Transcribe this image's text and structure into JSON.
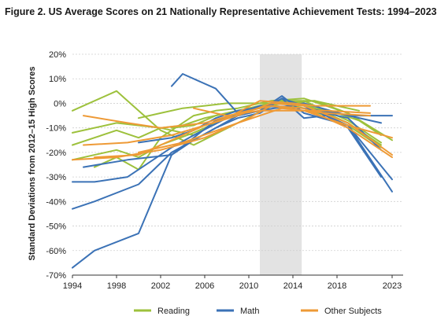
{
  "figure": {
    "title": "Figure 2. US Average Scores on 21 Nationally Representative Achievement Tests: 1994–2023"
  },
  "chart_data": {
    "type": "line",
    "title": "Figure 2. US Average Scores on 21 Nationally Representative Achievement Tests: 1994–2023",
    "xlabel": "",
    "ylabel": "Standard Deviations from 2012–15 High Scores",
    "xlim": [
      1994,
      2024
    ],
    "ylim": [
      -70,
      20
    ],
    "x_ticks": [
      1994,
      1998,
      2002,
      2006,
      2010,
      2014,
      2018,
      2023
    ],
    "x_tick_labels": [
      "1994",
      "1998",
      "2002",
      "2006",
      "2010",
      "2014",
      "2018",
      "2023"
    ],
    "y_ticks": [
      20,
      10,
      0,
      -10,
      -20,
      -30,
      -40,
      -50,
      -60,
      -70
    ],
    "y_tick_labels": [
      "20%",
      "10%",
      "0%",
      "-10%",
      "-20%",
      "-30%",
      "-40%",
      "-50%",
      "-60%",
      "-70%"
    ],
    "shaded_region": {
      "x_start": 2011,
      "x_end": 2014.8
    },
    "grid": "horizontal",
    "legend_position": "bottom",
    "legend": [
      {
        "label": "Reading",
        "color": "#9dc13c"
      },
      {
        "label": "Math",
        "color": "#3b72b6"
      },
      {
        "label": "Other Subjects",
        "color": "#ee9a36"
      }
    ],
    "series": [
      {
        "group": "Reading",
        "color": "#9dc13c",
        "x": [
          1994,
          1998,
          2002,
          2005,
          2009,
          2013,
          2015,
          2019,
          2022
        ],
        "y": [
          -3,
          5,
          -11,
          -17,
          -8,
          1,
          0,
          -8,
          -17
        ]
      },
      {
        "group": "Reading",
        "color": "#9dc13c",
        "x": [
          1994,
          1998,
          2002,
          2005,
          2007,
          2009,
          2011,
          2013,
          2015,
          2017,
          2019,
          2022
        ],
        "y": [
          -12,
          -8,
          -10,
          -13,
          -8,
          -4,
          -2,
          0,
          1,
          -3,
          -7,
          -16
        ]
      },
      {
        "group": "Reading",
        "color": "#9dc13c",
        "x": [
          1994,
          1998,
          2000,
          2002,
          2005,
          2007,
          2009,
          2011,
          2013,
          2015,
          2017,
          2019,
          2022
        ],
        "y": [
          -23,
          -19,
          -22,
          -17,
          -12,
          -8,
          -4,
          -1,
          0,
          -2,
          -5,
          -9,
          -18
        ]
      },
      {
        "group": "Reading",
        "color": "#9dc13c",
        "x": [
          1996,
          1998,
          2000,
          2002,
          2005,
          2007,
          2009,
          2012,
          2015,
          2019,
          2022
        ],
        "y": [
          -26,
          -22,
          -27,
          -14,
          -5,
          -3,
          -2,
          1,
          2,
          -4,
          -13
        ]
      },
      {
        "group": "Reading",
        "color": "#9dc13c",
        "x": [
          2000,
          2002,
          2004,
          2006,
          2008,
          2010,
          2012,
          2014,
          2016,
          2018,
          2020
        ],
        "y": [
          -6,
          -4,
          -2,
          -1,
          0,
          0,
          0,
          1,
          1,
          -1,
          -3
        ]
      },
      {
        "group": "Reading",
        "color": "#9dc13c",
        "x": [
          1994,
          1996,
          1998,
          2000,
          2002,
          2004,
          2006,
          2008,
          2010,
          2012,
          2014,
          2016,
          2018,
          2020
        ],
        "y": [
          -17,
          -14,
          -11,
          -14,
          -10,
          -9,
          -6,
          -4,
          -2,
          0,
          0,
          -2,
          -4,
          -7
        ]
      },
      {
        "group": "Reading",
        "color": "#9dc13c",
        "x": [
          2003,
          2005,
          2007,
          2009,
          2011,
          2013,
          2016,
          2019,
          2023
        ],
        "y": [
          -10,
          -9,
          -5,
          -3,
          -1,
          0,
          1,
          -4,
          -15
        ]
      },
      {
        "group": "Math",
        "color": "#3b72b6",
        "x": [
          1994,
          1996,
          2000,
          2003,
          2005,
          2007,
          2009,
          2011,
          2013,
          2015,
          2017,
          2019,
          2022
        ],
        "y": [
          -67,
          -60,
          -53,
          -21,
          -15,
          -10,
          -6,
          -4,
          2,
          -6,
          -5,
          -10,
          -30
        ]
      },
      {
        "group": "Math",
        "color": "#3b72b6",
        "x": [
          1994,
          1996,
          2000,
          2003,
          2005,
          2007,
          2009,
          2011,
          2013,
          2015,
          2019,
          2023
        ],
        "y": [
          -43,
          -40,
          -33,
          -20,
          -15,
          -10,
          -5,
          -3,
          3,
          -4,
          -9,
          -36
        ]
      },
      {
        "group": "Math",
        "color": "#3b72b6",
        "x": [
          1994,
          1996,
          1999,
          2003,
          2005,
          2008,
          2011,
          2013,
          2015,
          2019,
          2023
        ],
        "y": [
          -32,
          -32,
          -30,
          -18,
          -13,
          -6,
          -3,
          2,
          -1,
          -9,
          -31
        ]
      },
      {
        "group": "Math",
        "color": "#3b72b6",
        "x": [
          1995,
          1999,
          2003,
          2007,
          2011,
          2015,
          2019,
          2023
        ],
        "y": [
          -26,
          -23,
          -21,
          -7,
          -3,
          0,
          -5,
          -5
        ]
      },
      {
        "group": "Math",
        "color": "#3b72b6",
        "x": [
          2003,
          2004,
          2007,
          2009,
          2011,
          2015,
          2019,
          2022
        ],
        "y": [
          7,
          12,
          6,
          -4,
          -1,
          -2,
          -6,
          -19
        ]
      },
      {
        "group": "Math",
        "color": "#3b72b6",
        "x": [
          2000,
          2003,
          2005,
          2007,
          2009,
          2012,
          2015,
          2018,
          2022
        ],
        "y": [
          -16,
          -14,
          -11,
          -6,
          -3,
          -1,
          -2,
          -4,
          -8
        ]
      },
      {
        "group": "Other Subjects",
        "color": "#ee9a36",
        "x": [
          1994,
          1998,
          2002,
          2006,
          2010,
          2012,
          2015,
          2019,
          2023
        ],
        "y": [
          -23,
          -22,
          -19,
          -14,
          -6,
          -1,
          -2,
          -10,
          -22
        ]
      },
      {
        "group": "Other Subjects",
        "color": "#ee9a36",
        "x": [
          1995,
          1999,
          2003,
          2006,
          2009,
          2012,
          2015,
          2019,
          2023
        ],
        "y": [
          -17,
          -16,
          -13,
          -9,
          -5,
          0,
          -1,
          -8,
          -21
        ]
      },
      {
        "group": "Other Subjects",
        "color": "#ee9a36",
        "x": [
          1995,
          1999,
          2002,
          2006,
          2009,
          2012,
          2015,
          2019,
          2023
        ],
        "y": [
          -5,
          -8,
          -10,
          -8,
          -4,
          -1,
          -3,
          -9,
          -14
        ]
      },
      {
        "group": "Other Subjects",
        "color": "#ee9a36",
        "x": [
          1996,
          2000,
          2004,
          2006,
          2008,
          2011,
          2014,
          2016,
          2021
        ],
        "y": [
          -22,
          -21,
          -13,
          -9,
          -6,
          1,
          0,
          -1,
          -1
        ]
      },
      {
        "group": "Other Subjects",
        "color": "#ee9a36",
        "x": [
          2005,
          2008,
          2011,
          2014,
          2017,
          2021
        ],
        "y": [
          -2,
          -5,
          -3,
          -3,
          -3,
          -4
        ]
      },
      {
        "group": "Other Subjects",
        "color": "#ee9a36",
        "x": [
          2000,
          2004,
          2009,
          2013,
          2017,
          2021
        ],
        "y": [
          -20,
          -16,
          -8,
          -2,
          -4,
          -5
        ]
      }
    ]
  }
}
